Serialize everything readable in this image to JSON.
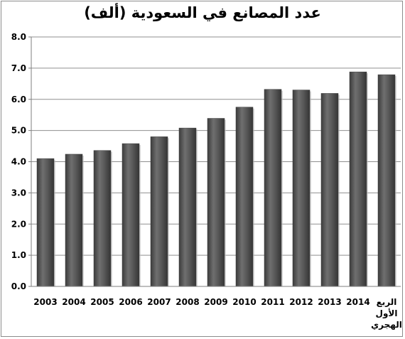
{
  "chart_data": {
    "type": "bar",
    "title": "عدد المصانع في السعودية (ألف)",
    "xlabel": "",
    "ylabel": "",
    "categories": [
      [
        "2003"
      ],
      [
        "2004"
      ],
      [
        "2005"
      ],
      [
        "2006"
      ],
      [
        "2007"
      ],
      [
        "2008"
      ],
      [
        "2009"
      ],
      [
        "2010"
      ],
      [
        "2011"
      ],
      [
        "2012"
      ],
      [
        "2013"
      ],
      [
        "2014"
      ],
      [
        "الربع",
        "الأول",
        "الهجري"
      ]
    ],
    "values": [
      4.1,
      4.24,
      4.36,
      4.58,
      4.8,
      5.08,
      5.39,
      5.75,
      6.32,
      6.3,
      6.19,
      6.88,
      6.79
    ],
    "ylim": [
      0,
      8
    ],
    "yticks": [
      "0.0",
      "1.0",
      "2.0",
      "3.0",
      "4.0",
      "5.0",
      "6.0",
      "7.0",
      "8.0"
    ],
    "grid": true,
    "legend": "none",
    "colors": {
      "bar": "#555555",
      "bar_highlight": "#7a7a7a",
      "bar_shadow": "#3a3a3a",
      "grid": "#8f8f8f",
      "axis": "#7f7f7f"
    }
  }
}
